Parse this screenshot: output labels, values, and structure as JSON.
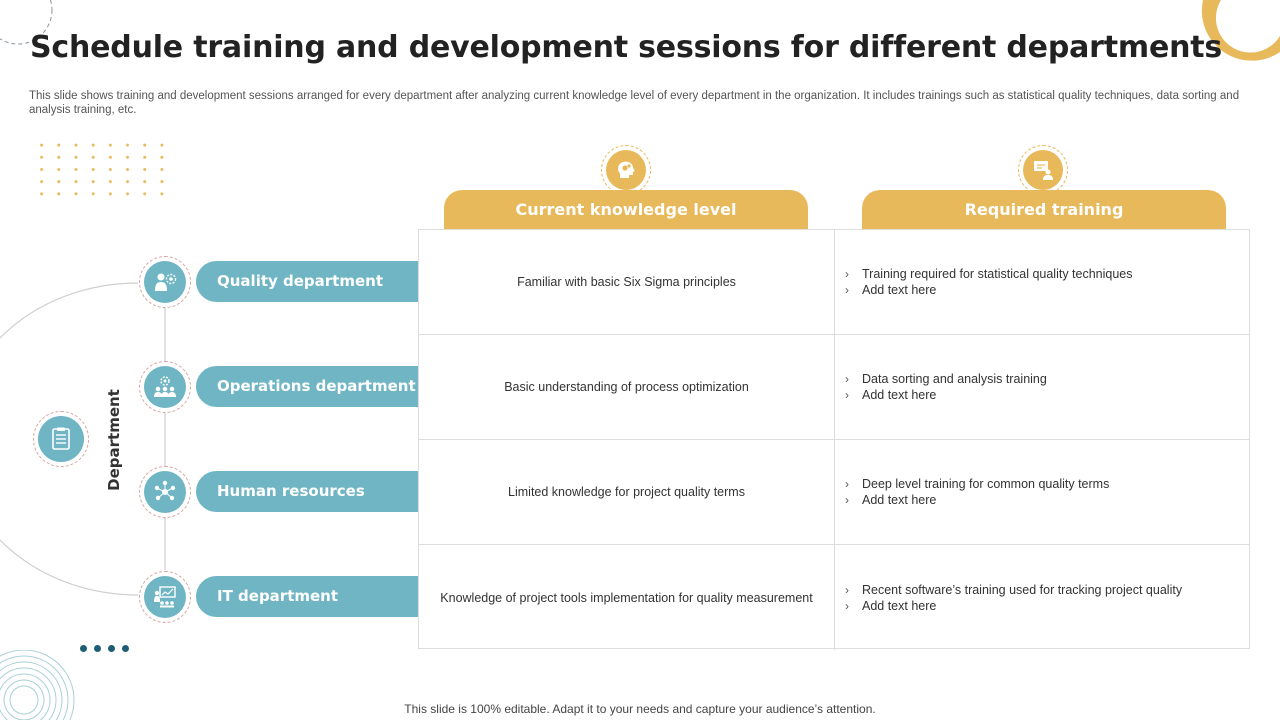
{
  "slide": {
    "title": "Schedule training and development sessions for different departments",
    "subtitle": "This slide shows training and development sessions arranged for every department after analyzing current knowledge level of every department in the organization. It includes trainings such as statistical quality techniques, data sorting and analysis training, etc.",
    "footer": "This slide is 100% editable. Adapt it to your needs and capture your audience’s attention."
  },
  "side_label": "Department",
  "headers": {
    "knowledge": "Current knowledge level",
    "training": "Required training"
  },
  "departments": [
    {
      "name": "Quality department",
      "icon": "quality-person-icon",
      "knowledge": "Familiar with basic Six Sigma principles",
      "training": [
        "Training required for statistical quality techniques",
        "Add text here"
      ]
    },
    {
      "name": "Operations department",
      "icon": "operations-team-icon",
      "knowledge": "Basic understanding of process optimization",
      "training": [
        "Data sorting and analysis training",
        "Add text here"
      ]
    },
    {
      "name": "Human resources",
      "icon": "people-network-icon",
      "knowledge": "Limited knowledge for project quality terms",
      "training": [
        "Deep level training for common quality terms",
        "Add text here"
      ]
    },
    {
      "name": "IT department",
      "icon": "presentation-board-icon",
      "knowledge": "Knowledge of project tools implementation for quality measurement",
      "training": [
        "Recent software’s training used for tracking project quality",
        "Add text here"
      ]
    }
  ],
  "colors": {
    "accent_gold": "#e8b95a",
    "accent_teal": "#6fb5c4",
    "dark_teal": "#1e5e72"
  }
}
